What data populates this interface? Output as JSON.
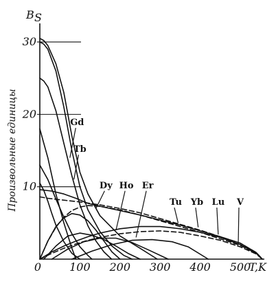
{
  "chart_data": {
    "type": "line",
    "title": "",
    "ylabel": "Произвольные единицы",
    "y_axis_symbol": "B",
    "y_axis_symbol_sub": "S",
    "xlabel": "T,K",
    "xlim": [
      0,
      560
    ],
    "ylim": [
      0,
      32
    ],
    "x_ticks": [
      "0",
      "100",
      "200",
      "300",
      "400",
      "500"
    ],
    "y_ticks": [
      "10",
      "20",
      "30"
    ],
    "grid": false,
    "series": [
      {
        "name": "Gd",
        "style": "solid",
        "x": [
          0,
          10,
          20,
          40,
          60,
          80,
          100,
          120,
          150,
          200,
          250,
          293
        ],
        "y": [
          30.5,
          30.2,
          29.5,
          27,
          23,
          17,
          12,
          9,
          6,
          3.2,
          1.5,
          0
        ]
      },
      {
        "name": "Tb",
        "style": "solid",
        "x": [
          0,
          10,
          20,
          40,
          60,
          80,
          100,
          120,
          150,
          180,
          210,
          230
        ],
        "y": [
          30,
          29.7,
          29,
          26,
          21,
          15,
          10,
          6.8,
          3.8,
          1.8,
          0.5,
          0
        ]
      },
      {
        "name": "Dy",
        "style": "solid",
        "x": [
          0,
          10,
          20,
          40,
          60,
          80,
          100,
          120,
          140,
          160,
          179
        ],
        "y": [
          25,
          24.6,
          23.8,
          20.5,
          16,
          11.5,
          7.5,
          4.6,
          2.5,
          1,
          0
        ]
      },
      {
        "name": "",
        "style": "solid",
        "x": [
          0,
          10,
          20,
          40,
          60,
          80,
          90
        ],
        "y": [
          18,
          16,
          14,
          9,
          5,
          1.5,
          0
        ]
      },
      {
        "name": "",
        "style": "solid",
        "x": [
          0,
          20,
          40,
          60,
          80,
          100,
          120,
          140,
          160,
          180,
          200
        ],
        "y": [
          0,
          2.5,
          4.5,
          5.7,
          6.3,
          6.1,
          5.3,
          4,
          2.5,
          1,
          0
        ]
      },
      {
        "name": "Ho",
        "style": "solid",
        "x": [
          0,
          10,
          20,
          40,
          60,
          80,
          100,
          120,
          130
        ],
        "y": [
          13,
          12,
          11,
          8.3,
          5.8,
          3.5,
          1.7,
          0.5,
          0
        ]
      },
      {
        "name": "",
        "style": "solid",
        "x": [
          10,
          40,
          70,
          100,
          130,
          160,
          190,
          220,
          250
        ],
        "y": [
          0,
          1.8,
          3.2,
          3.6,
          3.3,
          2.7,
          1.8,
          0.8,
          0
        ]
      },
      {
        "name": "Er",
        "style": "solid",
        "x": [
          0,
          10,
          20,
          30,
          40,
          60,
          80,
          100
        ],
        "y": [
          10.5,
          9.5,
          8,
          6.3,
          4.7,
          2.4,
          0.8,
          0
        ]
      },
      {
        "name": "",
        "style": "solid",
        "x": [
          30,
          70,
          110,
          150,
          190,
          230,
          270,
          320
        ],
        "y": [
          0,
          1.4,
          2.4,
          2.9,
          2.9,
          2.3,
          1.3,
          0
        ]
      },
      {
        "name": "",
        "style": "solid",
        "x": [
          80,
          130,
          180,
          230,
          280,
          330,
          370,
          420
        ],
        "y": [
          0,
          1.1,
          2,
          2.6,
          2.7,
          2.4,
          1.7,
          0
        ]
      },
      {
        "name": "Tu",
        "style": "dashed",
        "x": [
          0,
          20,
          40,
          60,
          80,
          100,
          120,
          150,
          200,
          250,
          300,
          350,
          400,
          450,
          500,
          540,
          555
        ],
        "y": [
          0,
          2.5,
          4.4,
          5.8,
          6.7,
          7.2,
          7.4,
          7.3,
          6.8,
          6.1,
          5.3,
          4.5,
          3.7,
          2.8,
          1.9,
          0.8,
          0
        ]
      },
      {
        "name": "Yb",
        "style": "solid",
        "x": [
          0,
          30,
          60,
          90,
          120,
          150,
          200,
          250,
          300,
          350,
          400,
          450,
          500,
          540,
          555
        ],
        "y": [
          9.6,
          9.4,
          9,
          8.4,
          7.7,
          7.3,
          6.7,
          6.1,
          5.4,
          4.7,
          3.9,
          3.1,
          2.2,
          0.9,
          0
        ]
      },
      {
        "name": "Lu",
        "style": "dashed",
        "x": [
          0,
          20,
          50,
          100,
          150,
          200,
          250,
          300,
          350,
          400,
          450,
          500,
          540,
          555
        ],
        "y": [
          8.6,
          8.4,
          8.2,
          7.9,
          7.5,
          7,
          6.4,
          5.6,
          4.8,
          4,
          3.1,
          2.2,
          0.9,
          0
        ]
      },
      {
        "name": "V",
        "style": "solid",
        "x": [
          0,
          30,
          60,
          90,
          120,
          150,
          200,
          250,
          300,
          350,
          400,
          450,
          500,
          540,
          555
        ],
        "y": [
          0,
          1,
          1.8,
          2.5,
          3.1,
          3.6,
          4.2,
          4.5,
          4.5,
          4.2,
          3.7,
          3,
          2,
          0.8,
          0
        ]
      },
      {
        "name": "",
        "style": "dashed",
        "x": [
          0,
          30,
          60,
          90,
          120,
          150,
          200,
          250,
          300,
          350,
          400,
          450,
          500,
          540,
          555
        ],
        "y": [
          0,
          0.8,
          1.5,
          2.1,
          2.6,
          3,
          3.5,
          3.8,
          3.9,
          3.7,
          3.2,
          2.6,
          1.7,
          0.7,
          0
        ]
      }
    ],
    "annotations": [
      {
        "text": "Gd",
        "x": 93,
        "y": 18.5
      },
      {
        "text": "Tb",
        "x": 100,
        "y": 14.8
      },
      {
        "text": "Dy",
        "x": 165,
        "y": 9.8
      },
      {
        "text": "Ho",
        "x": 216,
        "y": 9.8
      },
      {
        "text": "Er",
        "x": 269,
        "y": 9.8
      },
      {
        "text": "Tu",
        "x": 339,
        "y": 7.5
      },
      {
        "text": "Yb",
        "x": 392,
        "y": 7.5
      },
      {
        "text": "Lu",
        "x": 445,
        "y": 7.5
      },
      {
        "text": "V",
        "x": 500,
        "y": 7.5
      }
    ]
  }
}
